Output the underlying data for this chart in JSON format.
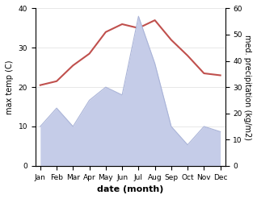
{
  "months": [
    "Jan",
    "Feb",
    "Mar",
    "Apr",
    "May",
    "Jun",
    "Jul",
    "Aug",
    "Sep",
    "Oct",
    "Nov",
    "Dec"
  ],
  "temperature": [
    20.5,
    21.5,
    25.5,
    28.5,
    34.0,
    36.0,
    35.0,
    37.0,
    32.0,
    28.0,
    23.5,
    23.0
  ],
  "precipitation": [
    15,
    22,
    15,
    25,
    30,
    27,
    57,
    39,
    15,
    8,
    15,
    13
  ],
  "temp_color": "#c0504d",
  "precip_fill_color": "#c5cce8",
  "precip_line_color": "#aab4d8",
  "xlabel": "date (month)",
  "ylabel_left": "max temp (C)",
  "ylabel_right": "med. precipitation (kg/m2)",
  "ylim_left": [
    0,
    40
  ],
  "ylim_right": [
    0,
    60
  ],
  "yticks_left": [
    0,
    10,
    20,
    30,
    40
  ],
  "yticks_right": [
    0,
    10,
    20,
    30,
    40,
    50,
    60
  ],
  "bg_color": "#ffffff",
  "fig_bg_color": "#ffffff"
}
